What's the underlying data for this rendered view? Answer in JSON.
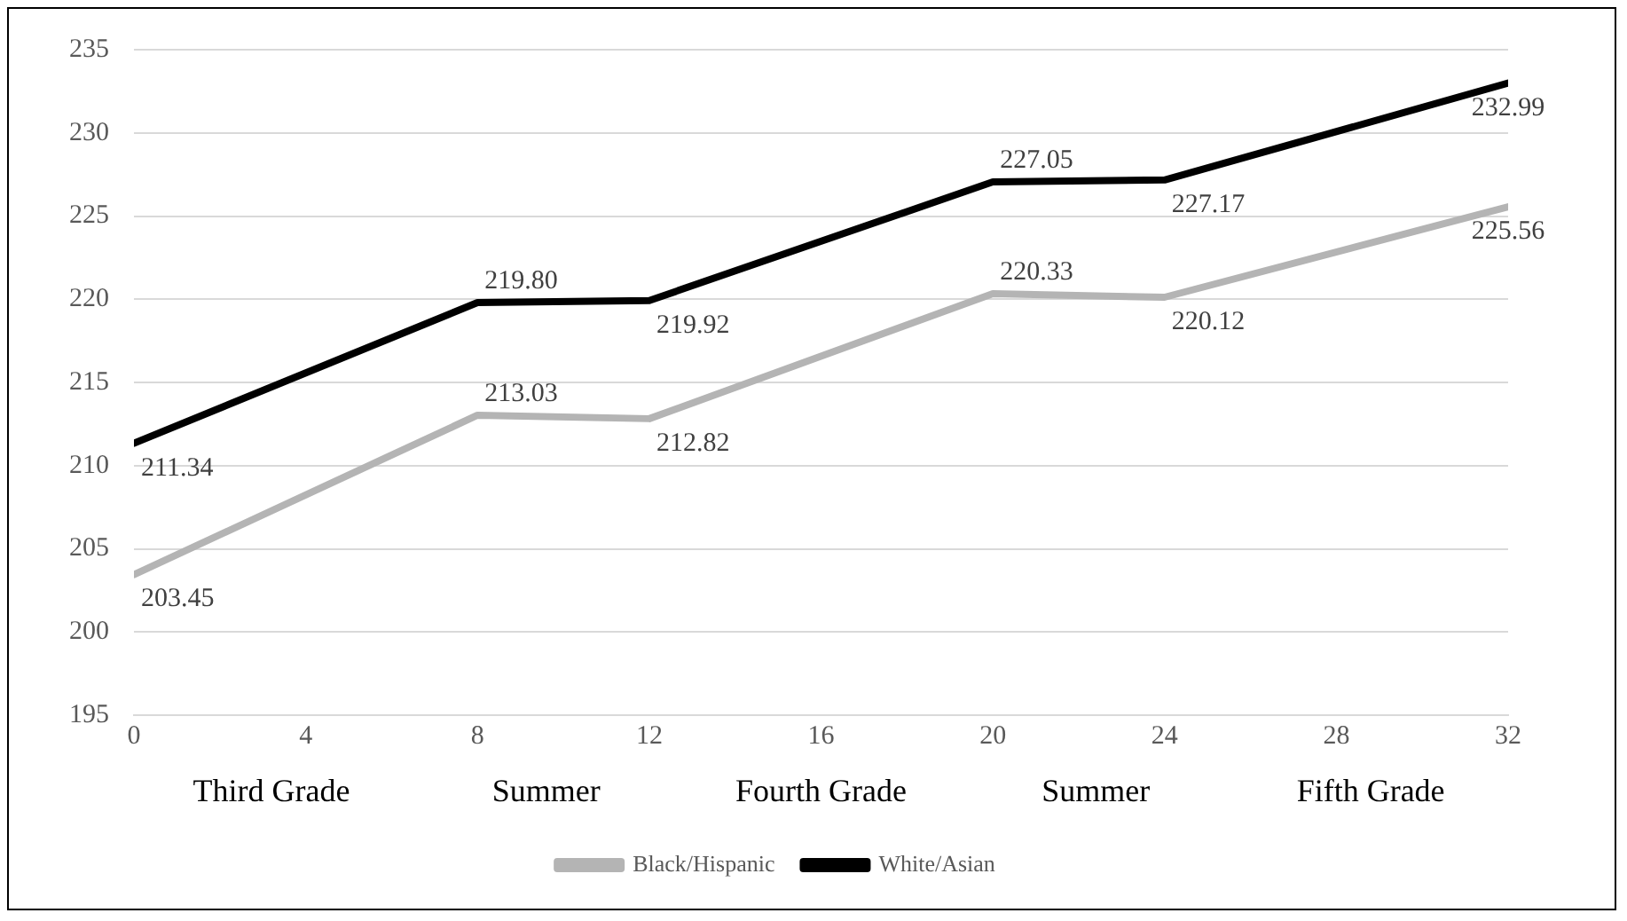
{
  "chart_data": {
    "type": "line",
    "x": [
      0,
      8,
      12,
      20,
      24,
      32
    ],
    "series": [
      {
        "name": "Black/Hispanic",
        "color": "#b4b4b4",
        "values": [
          203.45,
          213.03,
          212.82,
          220.33,
          220.12,
          225.56
        ],
        "value_labels": [
          "203.45",
          "213.03",
          "212.82",
          "220.33",
          "220.12",
          "225.56"
        ]
      },
      {
        "name": "White/Asian",
        "color": "#000000",
        "values": [
          211.34,
          219.8,
          219.92,
          227.05,
          227.17,
          232.99
        ],
        "value_labels": [
          "211.34",
          "219.80",
          "219.92",
          "227.05",
          "227.17",
          "232.99"
        ]
      }
    ],
    "xlim": [
      0,
      32
    ],
    "xticks": [
      0,
      4,
      8,
      12,
      16,
      20,
      24,
      28,
      32
    ],
    "annotations": [
      "Third Grade",
      "Summer",
      "Fourth Grade",
      "Summer",
      "Fifth Grade"
    ],
    "ylim": [
      195,
      235
    ],
    "yticks": [
      195,
      200,
      205,
      210,
      215,
      220,
      225,
      230,
      235
    ],
    "grid": "y",
    "legend": "bottom",
    "marker": "none",
    "line_style": "solid"
  }
}
